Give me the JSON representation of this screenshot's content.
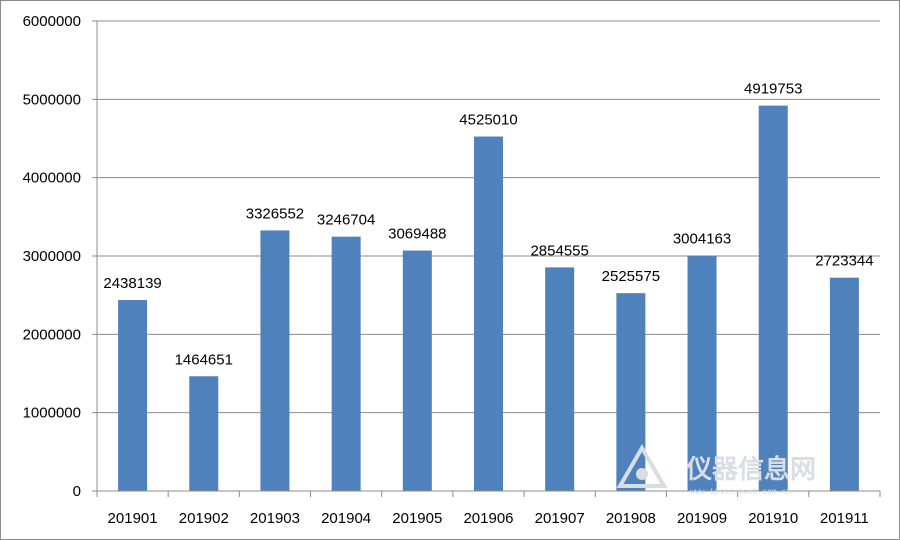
{
  "chart_data": {
    "type": "bar",
    "title": "",
    "xlabel": "",
    "ylabel": "",
    "categories": [
      "201901",
      "201902",
      "201903",
      "201904",
      "201905",
      "201906",
      "201907",
      "201908",
      "201909",
      "201910",
      "201911"
    ],
    "values": [
      2438139,
      1464651,
      3326552,
      3246704,
      3069488,
      4525010,
      2854555,
      2525575,
      3004163,
      4919753,
      2723344
    ],
    "ylim": [
      0,
      6000000
    ],
    "yticks": [
      "0",
      "1000000",
      "2000000",
      "3000000",
      "4000000",
      "5000000",
      "6000000"
    ],
    "grid": true,
    "legend": "none",
    "bar_color": "#4f81bd"
  },
  "watermark": {
    "text": "仪器信息网",
    "url": "www.instrument.com.cn"
  }
}
